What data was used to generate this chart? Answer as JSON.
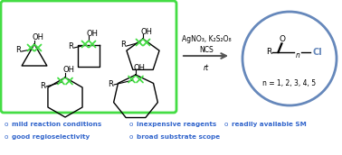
{
  "bg_color": "#ffffff",
  "green_box_color": "#44dd44",
  "blue_circle_color": "#6688bb",
  "arrow_color": "#555555",
  "text_color": "#000000",
  "blue_text_color": "#3366cc",
  "reagents_line1": "AgNO₃, K₂S₂O₈",
  "reagents_line2": "NCS",
  "reagents_line3": "rt",
  "product_formula": "n = 1, 2, 3, 4, 5",
  "bullet_left": [
    "mild reaction conditions",
    "good regioselectivity"
  ],
  "bullet_mid": [
    "inexpensive reagents",
    "broad substrate scope"
  ],
  "bullet_right": [
    "readily available SM"
  ],
  "figsize": [
    3.78,
    1.72
  ],
  "dpi": 100
}
